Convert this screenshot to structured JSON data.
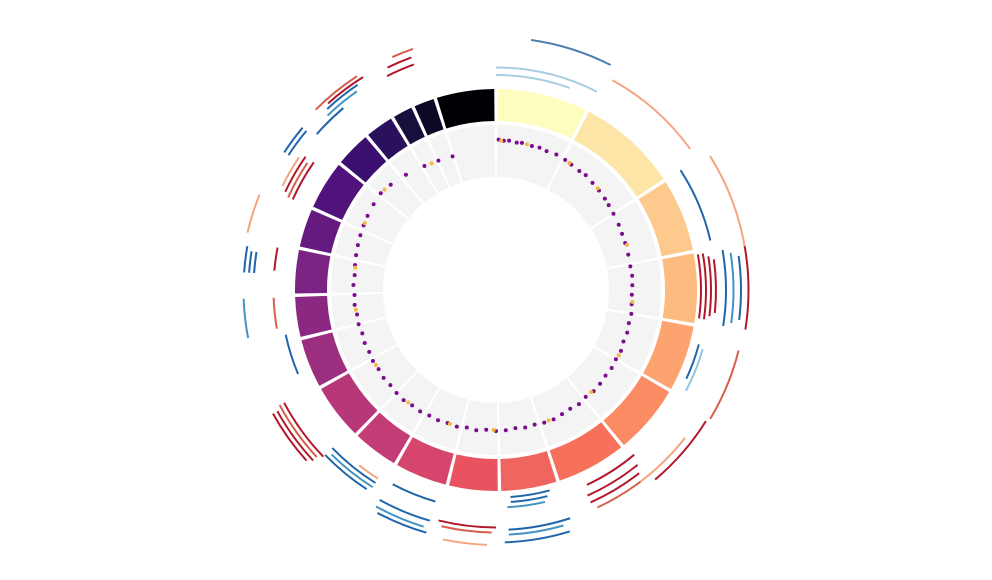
{
  "chart_data": {
    "type": "circos",
    "segments": {
      "values": [
        27,
        30,
        22,
        21,
        20,
        21,
        21,
        17,
        15,
        16,
        14,
        17,
        15,
        12.5,
        13.5,
        12,
        15,
        11,
        9,
        6.6,
        6.8,
        17.6
      ],
      "colors": [
        "#fcfdbf",
        "#fde5a7",
        "#fec98d",
        "#fdbb80",
        "#fca36f",
        "#fb8b62",
        "#f7705c",
        "#ef6560",
        "#e8535f",
        "#d6456c",
        "#c43c75",
        "#b73779",
        "#9c2e7f",
        "#8a2882",
        "#7a2382",
        "#651a80",
        "#50127b",
        "#3b0f70",
        "#2a115d",
        "#170f3c",
        "#0c0927",
        "#000004"
      ]
    },
    "scatter": {
      "ylim": [
        0,
        1
      ],
      "series": [
        {
          "color": "#7b0c8e",
          "x": [
            1,
            3,
            5,
            8,
            10,
            14,
            17,
            20,
            24,
            28,
            31,
            35,
            38,
            42,
            46,
            50,
            53,
            57,
            62,
            66,
            70,
            75,
            80,
            84,
            88,
            92,
            96,
            100,
            104,
            108,
            112,
            116,
            120,
            124,
            128,
            132,
            136,
            140,
            144,
            148,
            152,
            156,
            160,
            164,
            168,
            172,
            176,
            180,
            184,
            188,
            192,
            196,
            200,
            204,
            208,
            212,
            216,
            220,
            224,
            228,
            232,
            236,
            240,
            244,
            248,
            252,
            256,
            260,
            264,
            268,
            272,
            276,
            280,
            284,
            288,
            292,
            296,
            300,
            305,
            310,
            315,
            322,
            330,
            336,
            342
          ],
          "values": [
            0.72,
            0.7,
            0.71,
            0.69,
            0.7,
            0.68,
            0.69,
            0.67,
            0.68,
            0.66,
            0.64,
            0.62,
            0.63,
            0.6,
            0.58,
            0.56,
            0.54,
            0.52,
            0.5,
            0.48,
            0.47,
            0.46,
            0.45,
            0.46,
            0.45,
            0.44,
            0.45,
            0.47,
            0.46,
            0.48,
            0.47,
            0.5,
            0.49,
            0.51,
            0.5,
            0.52,
            0.53,
            0.51,
            0.54,
            0.52,
            0.53,
            0.55,
            0.54,
            0.52,
            0.53,
            0.51,
            0.53,
            0.54,
            0.52,
            0.55,
            0.53,
            0.56,
            0.55,
            0.57,
            0.56,
            0.58,
            0.57,
            0.59,
            0.58,
            0.56,
            0.57,
            0.55,
            0.56,
            0.54,
            0.55,
            0.53,
            0.55,
            0.54,
            0.56,
            0.55,
            0.57,
            0.56,
            0.58,
            0.6,
            0.62,
            0.64,
            0.66,
            0.68,
            0.7,
            0.72,
            0.69,
            0.64,
            0.58,
            0.55,
            0.53
          ]
        },
        {
          "color": "#f4b942",
          "x": [
            2,
            12,
            30,
            45,
            71,
            95,
            118,
            137,
            158,
            181,
            199,
            218,
            238,
            262,
            279,
            297,
            312,
            333
          ],
          "values": [
            0.7,
            0.69,
            0.65,
            0.59,
            0.49,
            0.46,
            0.5,
            0.51,
            0.53,
            0.52,
            0.55,
            0.57,
            0.55,
            0.55,
            0.57,
            0.66,
            0.71,
            0.56
          ]
        }
      ]
    },
    "arcs": [
      {
        "start": 8,
        "end": 27,
        "level": 9.5,
        "color": "#4a7fb0"
      },
      {
        "start": 0,
        "end": 27,
        "level": 3.5,
        "color": "#a6cde2"
      },
      {
        "start": 0,
        "end": 20,
        "level": 2,
        "color": "#a6cde2"
      },
      {
        "start": 29,
        "end": 54,
        "level": 7,
        "color": "#f4a582"
      },
      {
        "start": 58,
        "end": 81,
        "level": 9.5,
        "color": "#f4a582"
      },
      {
        "start": 57,
        "end": 77,
        "level": 3,
        "color": "#2166ac"
      },
      {
        "start": 80,
        "end": 98,
        "level": 0,
        "color": "#b2182b"
      },
      {
        "start": 80,
        "end": 98,
        "level": 1,
        "color": "#b2182b"
      },
      {
        "start": 81,
        "end": 97,
        "level": 2,
        "color": "#b2182b"
      },
      {
        "start": 82,
        "end": 96,
        "level": 3,
        "color": "#b2182b"
      },
      {
        "start": 80,
        "end": 99,
        "level": 5,
        "color": "#2166ac"
      },
      {
        "start": 81,
        "end": 98,
        "level": 6.5,
        "color": "#4393c3"
      },
      {
        "start": 82,
        "end": 97,
        "level": 8,
        "color": "#2166ac"
      },
      {
        "start": 80,
        "end": 99,
        "level": 9.5,
        "color": "#b2182b"
      },
      {
        "start": 105,
        "end": 115,
        "level": 1,
        "color": "#2166ac"
      },
      {
        "start": 106,
        "end": 118,
        "level": 2,
        "color": "#92c5de"
      },
      {
        "start": 104,
        "end": 121,
        "level": 9,
        "color": "#d6604d"
      },
      {
        "start": 122,
        "end": 140,
        "level": 8.5,
        "color": "#b2182b"
      },
      {
        "start": 128,
        "end": 143,
        "level": 7,
        "color": "#f4a582"
      },
      {
        "start": 140,
        "end": 155,
        "level": 2,
        "color": "#b2182b"
      },
      {
        "start": 141,
        "end": 156,
        "level": 4,
        "color": "#b2182b"
      },
      {
        "start": 142,
        "end": 156,
        "level": 5.5,
        "color": "#b2182b"
      },
      {
        "start": 143,
        "end": 155,
        "level": 7,
        "color": "#d6604d"
      },
      {
        "start": 165,
        "end": 176,
        "level": 0.5,
        "color": "#2166ac"
      },
      {
        "start": 166,
        "end": 176,
        "level": 1.5,
        "color": "#2166ac"
      },
      {
        "start": 167,
        "end": 177,
        "level": 2.5,
        "color": "#4393c3"
      },
      {
        "start": 162,
        "end": 177,
        "level": 7,
        "color": "#2166ac"
      },
      {
        "start": 164,
        "end": 177,
        "level": 8,
        "color": "#4393c3"
      },
      {
        "start": 163,
        "end": 178,
        "level": 9.5,
        "color": "#2166ac"
      },
      {
        "start": 180,
        "end": 194,
        "level": 6.5,
        "color": "#b2182b"
      },
      {
        "start": 181,
        "end": 193,
        "level": 7.5,
        "color": "#d6604d"
      },
      {
        "start": 182,
        "end": 192,
        "level": 10,
        "color": "#f4a582"
      },
      {
        "start": 196,
        "end": 208,
        "level": 3,
        "color": "#2166ac"
      },
      {
        "start": 196,
        "end": 209,
        "level": 7,
        "color": "#2166ac"
      },
      {
        "start": 197,
        "end": 209,
        "level": 8.5,
        "color": "#4393c3"
      },
      {
        "start": 196,
        "end": 208,
        "level": 9.5,
        "color": "#2166ac"
      },
      {
        "start": 212,
        "end": 226,
        "level": 4.5,
        "color": "#2166ac"
      },
      {
        "start": 212,
        "end": 225,
        "level": 5.5,
        "color": "#4393c3"
      },
      {
        "start": 213,
        "end": 226,
        "level": 6.5,
        "color": "#2166ac"
      },
      {
        "start": 212,
        "end": 218,
        "level": 3.5,
        "color": "#f4a582"
      },
      {
        "start": 226,
        "end": 242,
        "level": 7,
        "color": "#b2182b"
      },
      {
        "start": 227,
        "end": 242,
        "level": 8,
        "color": "#d6604d"
      },
      {
        "start": 227,
        "end": 241,
        "level": 9,
        "color": "#b2182b"
      },
      {
        "start": 228,
        "end": 241,
        "level": 10,
        "color": "#b2182b"
      },
      {
        "start": 247,
        "end": 258,
        "level": 2,
        "color": "#2166ac"
      },
      {
        "start": 260,
        "end": 268,
        "level": 3.5,
        "color": "#d6604d"
      },
      {
        "start": 259,
        "end": 268,
        "level": 9.5,
        "color": "#4393c3"
      },
      {
        "start": 274,
        "end": 279,
        "level": 7.5,
        "color": "#2166ac"
      },
      {
        "start": 274,
        "end": 279,
        "level": 8.5,
        "color": "#2166ac"
      },
      {
        "start": 274,
        "end": 280,
        "level": 9.5,
        "color": "#2166ac"
      },
      {
        "start": 275,
        "end": 281,
        "level": 3.5,
        "color": "#b2182b"
      },
      {
        "start": 283,
        "end": 292,
        "level": 10,
        "color": "#f4a582"
      },
      {
        "start": 294,
        "end": 305,
        "level": 3.5,
        "color": "#b2182b"
      },
      {
        "start": 294,
        "end": 304,
        "level": 4.5,
        "color": "#d6604d"
      },
      {
        "start": 295,
        "end": 305,
        "level": 5.5,
        "color": "#b2182b"
      },
      {
        "start": 296,
        "end": 304,
        "level": 6.5,
        "color": "#f4a582"
      },
      {
        "start": 303,
        "end": 310,
        "level": 8.5,
        "color": "#2166ac"
      },
      {
        "start": 303,
        "end": 310,
        "level": 9.5,
        "color": "#2166ac"
      },
      {
        "start": 311,
        "end": 320,
        "level": 6.5,
        "color": "#2166ac"
      },
      {
        "start": 316,
        "end": 325,
        "level": 7.5,
        "color": "#4393c3"
      },
      {
        "start": 317,
        "end": 326,
        "level": 8.5,
        "color": "#2166ac"
      },
      {
        "start": 315,
        "end": 327,
        "level": 10,
        "color": "#d6604d"
      },
      {
        "start": 318,
        "end": 328,
        "level": 9.2,
        "color": "#b2182b"
      },
      {
        "start": 333,
        "end": 340,
        "level": 7,
        "color": "#b2182b"
      },
      {
        "start": 334,
        "end": 340,
        "level": 8.5,
        "color": "#b2182b"
      },
      {
        "start": 336,
        "end": 341,
        "level": 10,
        "color": "#d6604d"
      }
    ]
  }
}
